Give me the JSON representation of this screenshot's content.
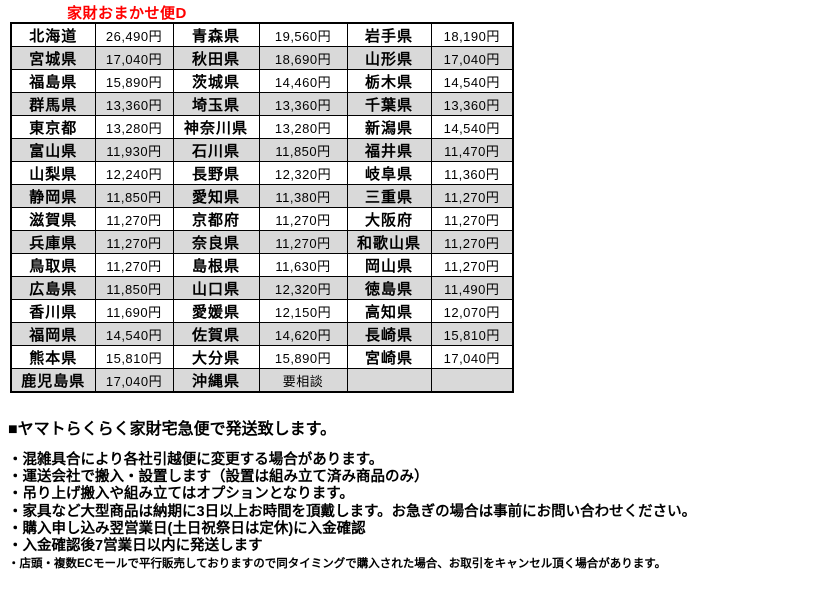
{
  "title": "家財おまかせ便D",
  "colors": {
    "accent_red": "#ff0000",
    "row_alt_gray": "#d9d9d9",
    "border_black": "#000000"
  },
  "table": {
    "rows": [
      [
        {
          "pref": "北海道",
          "price": "26,490円"
        },
        {
          "pref": "青森県",
          "price": "19,560円"
        },
        {
          "pref": "岩手県",
          "price": "18,190円"
        }
      ],
      [
        {
          "pref": "宮城県",
          "price": "17,040円"
        },
        {
          "pref": "秋田県",
          "price": "18,690円"
        },
        {
          "pref": "山形県",
          "price": "17,040円"
        }
      ],
      [
        {
          "pref": "福島県",
          "price": "15,890円"
        },
        {
          "pref": "茨城県",
          "price": "14,460円"
        },
        {
          "pref": "栃木県",
          "price": "14,540円"
        }
      ],
      [
        {
          "pref": "群馬県",
          "price": "13,360円"
        },
        {
          "pref": "埼玉県",
          "price": "13,360円"
        },
        {
          "pref": "千葉県",
          "price": "13,360円"
        }
      ],
      [
        {
          "pref": "東京都",
          "price": "13,280円"
        },
        {
          "pref": "神奈川県",
          "price": "13,280円"
        },
        {
          "pref": "新潟県",
          "price": "14,540円"
        }
      ],
      [
        {
          "pref": "富山県",
          "price": "11,930円"
        },
        {
          "pref": "石川県",
          "price": "11,850円"
        },
        {
          "pref": "福井県",
          "price": "11,470円"
        }
      ],
      [
        {
          "pref": "山梨県",
          "price": "12,240円"
        },
        {
          "pref": "長野県",
          "price": "12,320円"
        },
        {
          "pref": "岐阜県",
          "price": "11,360円"
        }
      ],
      [
        {
          "pref": "静岡県",
          "price": "11,850円"
        },
        {
          "pref": "愛知県",
          "price": "11,380円"
        },
        {
          "pref": "三重県",
          "price": "11,270円"
        }
      ],
      [
        {
          "pref": "滋賀県",
          "price": "11,270円"
        },
        {
          "pref": "京都府",
          "price": "11,270円"
        },
        {
          "pref": "大阪府",
          "price": "11,270円"
        }
      ],
      [
        {
          "pref": "兵庫県",
          "price": "11,270円"
        },
        {
          "pref": "奈良県",
          "price": "11,270円"
        },
        {
          "pref": "和歌山県",
          "price": "11,270円"
        }
      ],
      [
        {
          "pref": "鳥取県",
          "price": "11,270円"
        },
        {
          "pref": "島根県",
          "price": "11,630円"
        },
        {
          "pref": "岡山県",
          "price": "11,270円"
        }
      ],
      [
        {
          "pref": "広島県",
          "price": "11,850円"
        },
        {
          "pref": "山口県",
          "price": "12,320円"
        },
        {
          "pref": "徳島県",
          "price": "11,490円"
        }
      ],
      [
        {
          "pref": "香川県",
          "price": "11,690円"
        },
        {
          "pref": "愛媛県",
          "price": "12,150円"
        },
        {
          "pref": "高知県",
          "price": "12,070円"
        }
      ],
      [
        {
          "pref": "福岡県",
          "price": "14,540円"
        },
        {
          "pref": "佐賀県",
          "price": "14,620円"
        },
        {
          "pref": "長崎県",
          "price": "15,810円"
        }
      ],
      [
        {
          "pref": "熊本県",
          "price": "15,810円"
        },
        {
          "pref": "大分県",
          "price": "15,890円"
        },
        {
          "pref": "宮崎県",
          "price": "17,040円"
        }
      ],
      [
        {
          "pref": "鹿児島県",
          "price": "17,040円"
        },
        {
          "pref": "沖縄県",
          "price": "要相談"
        },
        {
          "pref": "",
          "price": ""
        }
      ]
    ]
  },
  "notes": {
    "heading": "■ヤマトらくらく家財宅急便で発送致します。",
    "bullets": [
      "・混雑具合により各社引越便に変更する場合があります。",
      "・運送会社で搬入・設置します（設置は組み立て済み商品のみ）",
      "・吊り上げ搬入や組み立てはオプションとなります。",
      "・家具など大型商品は納期に3日以上お時間を頂戴します。お急ぎの場合は事前にお問い合わせください。",
      "・購入申し込み翌営業日(土日祝祭日は定休)に入金確認",
      "・入金確認後7営業日以内に発送します"
    ],
    "small_note": "・店頭・複数ECモールで平行販売しておりますので同タイミングで購入された場合、お取引をキャンセル頂く場合があります。"
  }
}
